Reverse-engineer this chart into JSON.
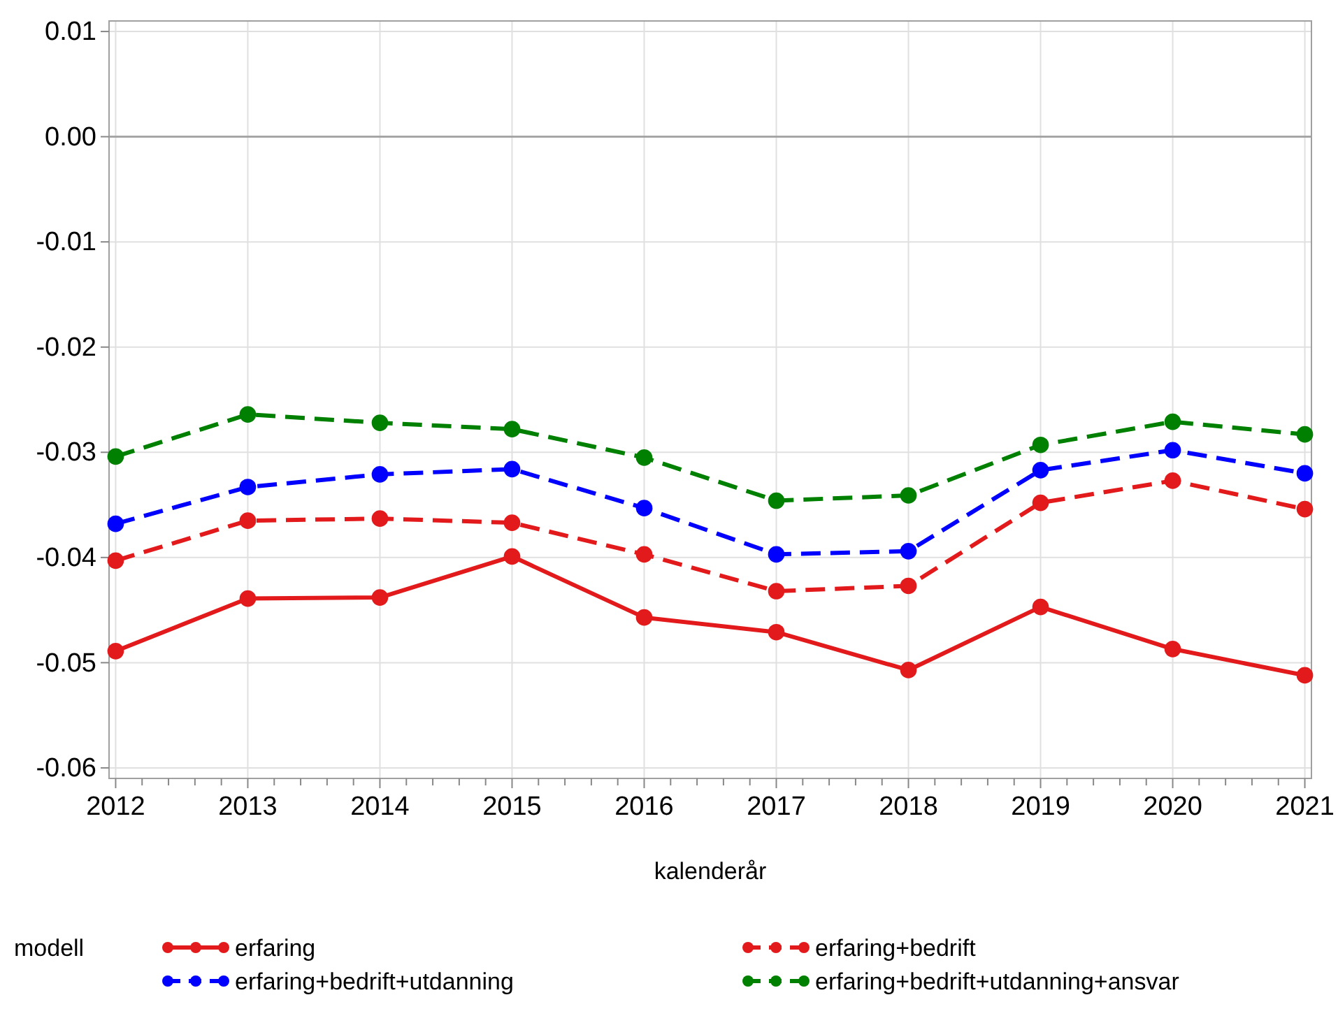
{
  "chart_data": {
    "type": "line",
    "xlabel": "kalenderår",
    "legend_title": "modell",
    "legend": "bottom",
    "grid": true,
    "marker": "circle",
    "x": [
      2012,
      2013,
      2014,
      2015,
      2016,
      2017,
      2018,
      2019,
      2020,
      2021
    ],
    "xlim": [
      2011.95,
      2021.05
    ],
    "xticks": [
      2012,
      {
        "value": 2012.2,
        "label": null
      },
      {
        "value": 2012.4,
        "label": null
      },
      {
        "value": 2012.6,
        "label": null
      },
      {
        "value": 2012.8,
        "label": null
      },
      2013,
      {
        "value": 2013.2,
        "label": null
      },
      {
        "value": 2013.4,
        "label": null
      },
      {
        "value": 2013.6,
        "label": null
      },
      {
        "value": 2013.8,
        "label": null
      },
      2014,
      {
        "value": 2014.2,
        "label": null
      },
      {
        "value": 2014.4,
        "label": null
      },
      {
        "value": 2014.6,
        "label": null
      },
      {
        "value": 2014.8,
        "label": null
      },
      2015,
      {
        "value": 2015.2,
        "label": null
      },
      {
        "value": 2015.4,
        "label": null
      },
      {
        "value": 2015.6,
        "label": null
      },
      {
        "value": 2015.8,
        "label": null
      },
      2016,
      {
        "value": 2016.2,
        "label": null
      },
      {
        "value": 2016.4,
        "label": null
      },
      {
        "value": 2016.6,
        "label": null
      },
      {
        "value": 2016.8,
        "label": null
      },
      2017,
      {
        "value": 2017.2,
        "label": null
      },
      {
        "value": 2017.4,
        "label": null
      },
      {
        "value": 2017.6,
        "label": null
      },
      {
        "value": 2017.8,
        "label": null
      },
      2018,
      {
        "value": 2018.2,
        "label": null
      },
      {
        "value": 2018.4,
        "label": null
      },
      {
        "value": 2018.6,
        "label": null
      },
      {
        "value": 2018.8,
        "label": null
      },
      2019,
      {
        "value": 2019.2,
        "label": null
      },
      {
        "value": 2019.4,
        "label": null
      },
      {
        "value": 2019.6,
        "label": null
      },
      {
        "value": 2019.8,
        "label": null
      },
      2020,
      {
        "value": 2020.2,
        "label": null
      },
      {
        "value": 2020.4,
        "label": null
      },
      {
        "value": 2020.6,
        "label": null
      },
      {
        "value": 2020.8,
        "label": null
      },
      2021
    ],
    "ylim": [
      -0.061,
      0.011
    ],
    "yticks": [
      {
        "value": 0.01,
        "label": "0.01"
      },
      {
        "value": 0,
        "label": "0.00"
      },
      {
        "value": -0.01,
        "label": "-0.01"
      },
      {
        "value": -0.02,
        "label": "-0.02"
      },
      {
        "value": -0.03,
        "label": "-0.03"
      },
      {
        "value": -0.04,
        "label": "-0.04"
      },
      {
        "value": -0.05,
        "label": "-0.05"
      },
      {
        "value": -0.06,
        "label": "-0.06"
      }
    ],
    "ref_lines": [
      {
        "axis": "y",
        "value": 0,
        "color": "#a0a0a0"
      }
    ],
    "series": [
      {
        "name": "erfaring",
        "color": "#e31a1c",
        "line_style": "solid",
        "values": [
          -0.0489,
          -0.0439,
          -0.0438,
          -0.0399,
          -0.0457,
          -0.0471,
          -0.0507,
          -0.0447,
          -0.0487,
          -0.0512
        ]
      },
      {
        "name": "erfaring+bedrift",
        "color": "#e31a1c",
        "line_style": "dashed",
        "values": [
          -0.0403,
          -0.0365,
          -0.0363,
          -0.0367,
          -0.0397,
          -0.0432,
          -0.0427,
          -0.0348,
          -0.0327,
          -0.0354
        ]
      },
      {
        "name": "erfaring+bedrift+utdanning",
        "color": "#0000ff",
        "line_style": "dashed",
        "values": [
          -0.0368,
          -0.0333,
          -0.0321,
          -0.0316,
          -0.0353,
          -0.0397,
          -0.0394,
          -0.0317,
          -0.0298,
          -0.032
        ]
      },
      {
        "name": "erfaring+bedrift+utdanning+ansvar",
        "color": "#008000",
        "line_style": "dashed",
        "values": [
          -0.0304,
          -0.0264,
          -0.0272,
          -0.0278,
          -0.0305,
          -0.0346,
          -0.0341,
          -0.0293,
          -0.0271,
          -0.0283
        ]
      }
    ]
  }
}
